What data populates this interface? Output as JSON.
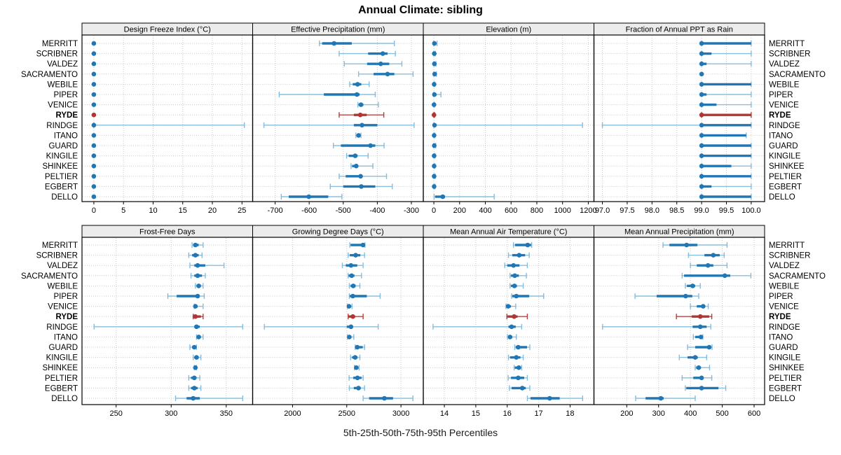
{
  "title": "Annual Climate: sibling",
  "caption": "5th-25th-50th-75th-95th Percentiles",
  "sites": [
    "MERRITT",
    "SCRIBNER",
    "VALDEZ",
    "SACRAMENTO",
    "WEBILE",
    "PIPER",
    "VENICE",
    "RYDE",
    "RINDGE",
    "ITANO",
    "GUARD",
    "KINGILE",
    "SHINKEE",
    "PELTIER",
    "EGBERT",
    "DELLO"
  ],
  "highlight_site": "RYDE",
  "colors": {
    "blue": "#2077b4",
    "blue_light": "#7fb9dc",
    "red": "#b23531",
    "strip_bg": "#ececec",
    "grid": "#c9c9c9",
    "border": "#000000",
    "text": "#000000"
  },
  "chart_data": {
    "type": "dotplot-trellis",
    "percentiles": [
      "5th",
      "25th",
      "50th",
      "75th",
      "95th"
    ],
    "legend_position": "none",
    "grid": "dotted",
    "panels": [
      {
        "title": "Design Freeze Index (°C)",
        "row": 0,
        "col": 0,
        "xlim": [
          -2,
          26.8
        ],
        "ticks": [
          0,
          5,
          10,
          15,
          20,
          25
        ],
        "tick_labels": [
          "0",
          "5",
          "10",
          "15",
          "20",
          "25"
        ],
        "values": [
          [
            0,
            0,
            0,
            0,
            0
          ],
          [
            0,
            0,
            0,
            0,
            0
          ],
          [
            0,
            0,
            0,
            0,
            0
          ],
          [
            0,
            0,
            0,
            0,
            0
          ],
          [
            0,
            0,
            0,
            0,
            0
          ],
          [
            0,
            0,
            0,
            0,
            0
          ],
          [
            0,
            0,
            0,
            0,
            0
          ],
          [
            0,
            0,
            0,
            0,
            0
          ],
          [
            0,
            0,
            0,
            0,
            25.4
          ],
          [
            0,
            0,
            0,
            0,
            0
          ],
          [
            0,
            0,
            0,
            0,
            0
          ],
          [
            0,
            0,
            0,
            0,
            0
          ],
          [
            0,
            0,
            0,
            0,
            0
          ],
          [
            0,
            0,
            0,
            0,
            0
          ],
          [
            0,
            0,
            0,
            0,
            0
          ],
          [
            0,
            0,
            0,
            0,
            0
          ]
        ]
      },
      {
        "title": "Effective Precipitation (mm)",
        "row": 0,
        "col": 1,
        "xlim": [
          -766,
          -265
        ],
        "ticks": [
          -700,
          -600,
          -500,
          -400,
          -300
        ],
        "tick_labels": [
          "-700",
          "-600",
          "-500",
          "-400",
          "-300"
        ],
        "values": [
          [
            -570,
            -562,
            -527,
            -475,
            -350
          ],
          [
            -512,
            -427,
            -384,
            -370,
            -347
          ],
          [
            -497,
            -430,
            -390,
            -365,
            -328
          ],
          [
            -455,
            -411,
            -370,
            -350,
            -295
          ],
          [
            -481,
            -472,
            -458,
            -447,
            -424
          ],
          [
            -688,
            -557,
            -460,
            -452,
            -406
          ],
          [
            -457,
            -455,
            -448,
            -441,
            -397
          ],
          [
            -512,
            -469,
            -450,
            -431,
            -381
          ],
          [
            -733,
            -469,
            -445,
            -400,
            -292
          ],
          [
            -463,
            -460,
            -455,
            -452,
            -448
          ],
          [
            -529,
            -507,
            -420,
            -406,
            -380
          ],
          [
            -490,
            -484,
            -465,
            -458,
            -427
          ],
          [
            -477,
            -474,
            -462,
            -457,
            -413
          ],
          [
            -512,
            -493,
            -449,
            -444,
            -373
          ],
          [
            -538,
            -500,
            -447,
            -406,
            -356
          ],
          [
            -682,
            -660,
            -601,
            -544,
            -504
          ]
        ]
      },
      {
        "title": "Elevation (m)",
        "row": 0,
        "col": 2,
        "xlim": [
          -82,
          1244
        ],
        "ticks": [
          0,
          200,
          400,
          600,
          800,
          1000,
          1200
        ],
        "tick_labels": [
          "0",
          "200",
          "400",
          "600",
          "800",
          "1000",
          "1200"
        ],
        "values": [
          [
            0,
            1,
            4,
            12,
            25
          ],
          [
            0,
            1,
            3,
            6,
            12
          ],
          [
            0,
            1,
            4,
            9,
            16
          ],
          [
            0,
            2,
            6,
            12,
            20
          ],
          [
            0,
            0,
            2,
            4,
            8
          ],
          [
            0,
            1,
            4,
            12,
            55
          ],
          [
            0,
            0,
            1,
            3,
            6
          ],
          [
            0,
            0,
            1,
            2,
            5
          ],
          [
            0,
            1,
            5,
            15,
            1155
          ],
          [
            0,
            0,
            2,
            4,
            8
          ],
          [
            0,
            1,
            3,
            8,
            14
          ],
          [
            0,
            0,
            2,
            5,
            10
          ],
          [
            0,
            0,
            2,
            4,
            8
          ],
          [
            0,
            0,
            2,
            5,
            10
          ],
          [
            0,
            0,
            2,
            5,
            10
          ],
          [
            2,
            10,
            69,
            87,
            469
          ]
        ]
      },
      {
        "title": "Fraction of Annual PPT as Rain",
        "row": 0,
        "col": 3,
        "xlim": [
          96.83,
          100.27
        ],
        "ticks": [
          97.0,
          97.5,
          98.0,
          98.5,
          99.0,
          99.5,
          100.0
        ],
        "tick_labels": [
          "97.0",
          "97.5",
          "98.0",
          "98.5",
          "99.0",
          "99.5",
          "100.0"
        ],
        "values": [
          [
            99,
            99,
            99,
            100,
            100
          ],
          [
            99,
            99,
            99,
            99.2,
            100
          ],
          [
            99,
            99,
            99,
            99.1,
            100
          ],
          [
            99,
            99,
            99,
            99,
            99
          ],
          [
            99,
            99,
            99,
            100,
            100
          ],
          [
            99,
            99,
            99,
            99.1,
            100
          ],
          [
            99,
            99,
            99,
            99.3,
            100
          ],
          [
            99,
            99,
            99,
            100,
            100
          ],
          [
            97,
            99,
            99,
            100,
            100
          ],
          [
            99,
            99,
            99,
            99.9,
            99.9
          ],
          [
            99,
            99,
            99,
            100,
            100
          ],
          [
            99,
            99,
            99,
            100,
            100
          ],
          [
            99,
            99,
            99,
            99.6,
            100
          ],
          [
            99,
            99,
            99,
            100,
            100
          ],
          [
            99,
            99,
            99,
            99.2,
            100
          ],
          [
            99,
            99,
            99,
            100,
            100
          ]
        ]
      },
      {
        "title": "Frost-Free Days",
        "row": 1,
        "col": 0,
        "xlim": [
          219,
          374
        ],
        "ticks": [
          250,
          300,
          350
        ],
        "tick_labels": [
          "250",
          "300",
          "350"
        ],
        "values": [
          [
            319,
            320,
            322,
            325,
            329
          ],
          [
            316,
            319,
            322,
            325,
            328
          ],
          [
            317,
            321,
            324,
            331,
            348
          ],
          [
            318,
            321,
            324,
            328,
            331
          ],
          [
            322,
            323,
            325,
            327,
            329
          ],
          [
            297,
            305,
            324,
            325,
            330
          ],
          [
            321,
            321,
            322,
            324,
            329
          ],
          [
            320,
            320,
            322,
            327,
            329
          ],
          [
            230,
            321,
            323,
            326,
            365
          ],
          [
            323,
            323,
            325,
            327,
            329
          ],
          [
            317,
            319,
            321,
            323,
            323
          ],
          [
            320,
            321,
            323,
            325,
            327
          ],
          [
            321,
            321,
            322,
            323,
            323
          ],
          [
            316,
            318,
            321,
            323,
            326
          ],
          [
            316,
            318,
            321,
            324,
            327
          ],
          [
            304,
            314,
            320,
            326,
            365
          ]
        ]
      },
      {
        "title": "Growing Degree Days (°C)",
        "row": 1,
        "col": 1,
        "xlim": [
          1632,
          3206
        ],
        "ticks": [
          2000,
          2500,
          3000
        ],
        "tick_labels": [
          "2000",
          "2500",
          "3000"
        ],
        "values": [
          [
            2528,
            2535,
            2650,
            2658,
            2668
          ],
          [
            2513,
            2528,
            2582,
            2625,
            2664
          ],
          [
            2459,
            2491,
            2539,
            2597,
            2651
          ],
          [
            2513,
            2517,
            2545,
            2571,
            2636
          ],
          [
            2524,
            2535,
            2560,
            2582,
            2621
          ],
          [
            2524,
            2528,
            2556,
            2685,
            2808
          ],
          [
            2506,
            2506,
            2521,
            2539,
            2549
          ],
          [
            2513,
            2517,
            2556,
            2577,
            2651
          ],
          [
            1740,
            2500,
            2539,
            2549,
            2790
          ],
          [
            2506,
            2513,
            2524,
            2539,
            2565
          ],
          [
            2578,
            2582,
            2597,
            2647,
            2664
          ],
          [
            2535,
            2549,
            2577,
            2599,
            2621
          ],
          [
            2571,
            2575,
            2588,
            2608,
            2614
          ],
          [
            2522,
            2560,
            2599,
            2636,
            2651
          ],
          [
            2524,
            2565,
            2608,
            2629,
            2664
          ],
          [
            2651,
            2706,
            2847,
            2927,
            3110
          ]
        ]
      },
      {
        "title": "Mean Annual Air Temperature (°C)",
        "row": 1,
        "col": 2,
        "xlim": [
          13.33,
          18.76
        ],
        "ticks": [
          14,
          15,
          16,
          17,
          18
        ],
        "tick_labels": [
          "14",
          "15",
          "16",
          "17",
          "18"
        ],
        "values": [
          [
            16.2,
            16.25,
            16.65,
            16.76,
            16.78
          ],
          [
            16.04,
            16.16,
            16.38,
            16.57,
            16.7
          ],
          [
            15.92,
            16.0,
            16.2,
            16.39,
            16.64
          ],
          [
            16.09,
            16.12,
            16.24,
            16.37,
            16.61
          ],
          [
            16.09,
            16.12,
            16.23,
            16.31,
            16.51
          ],
          [
            16.14,
            16.16,
            16.29,
            16.7,
            17.16
          ],
          [
            15.96,
            15.97,
            16.03,
            16.12,
            16.27
          ],
          [
            15.99,
            16.01,
            16.22,
            16.33,
            16.64
          ],
          [
            13.64,
            16.04,
            16.14,
            16.27,
            16.46
          ],
          [
            16.01,
            16.03,
            16.09,
            16.16,
            16.29
          ],
          [
            16.24,
            16.27,
            16.35,
            16.63,
            16.72
          ],
          [
            16.04,
            16.09,
            16.29,
            16.42,
            16.51
          ],
          [
            16.22,
            16.24,
            16.37,
            16.42,
            16.46
          ],
          [
            16.03,
            16.12,
            16.35,
            16.54,
            16.64
          ],
          [
            16.07,
            16.14,
            16.48,
            16.59,
            16.72
          ],
          [
            16.64,
            16.74,
            17.35,
            17.67,
            18.4
          ]
        ]
      },
      {
        "title": "Mean Annual Precipitation (mm)",
        "row": 1,
        "col": 3,
        "xlim": [
          97,
          633
        ],
        "ticks": [
          200,
          300,
          400,
          500,
          600
        ],
        "tick_labels": [
          "200",
          "300",
          "400",
          "500",
          "600"
        ],
        "values": [
          [
            314,
            334,
            388,
            422,
            515
          ],
          [
            394,
            444,
            472,
            492,
            506
          ],
          [
            400,
            420,
            455,
            472,
            515
          ],
          [
            374,
            380,
            508,
            525,
            590
          ],
          [
            384,
            389,
            407,
            415,
            431
          ],
          [
            226,
            294,
            385,
            406,
            426
          ],
          [
            400,
            420,
            440,
            446,
            456
          ],
          [
            356,
            404,
            431,
            459,
            467
          ],
          [
            124,
            407,
            431,
            451,
            464
          ],
          [
            409,
            415,
            433,
            436,
            439
          ],
          [
            391,
            415,
            459,
            464,
            468
          ],
          [
            365,
            391,
            415,
            423,
            451
          ],
          [
            415,
            418,
            426,
            433,
            460
          ],
          [
            374,
            409,
            435,
            441,
            467
          ],
          [
            384,
            387,
            435,
            488,
            511
          ],
          [
            228,
            259,
            307,
            316,
            415
          ]
        ]
      }
    ]
  }
}
